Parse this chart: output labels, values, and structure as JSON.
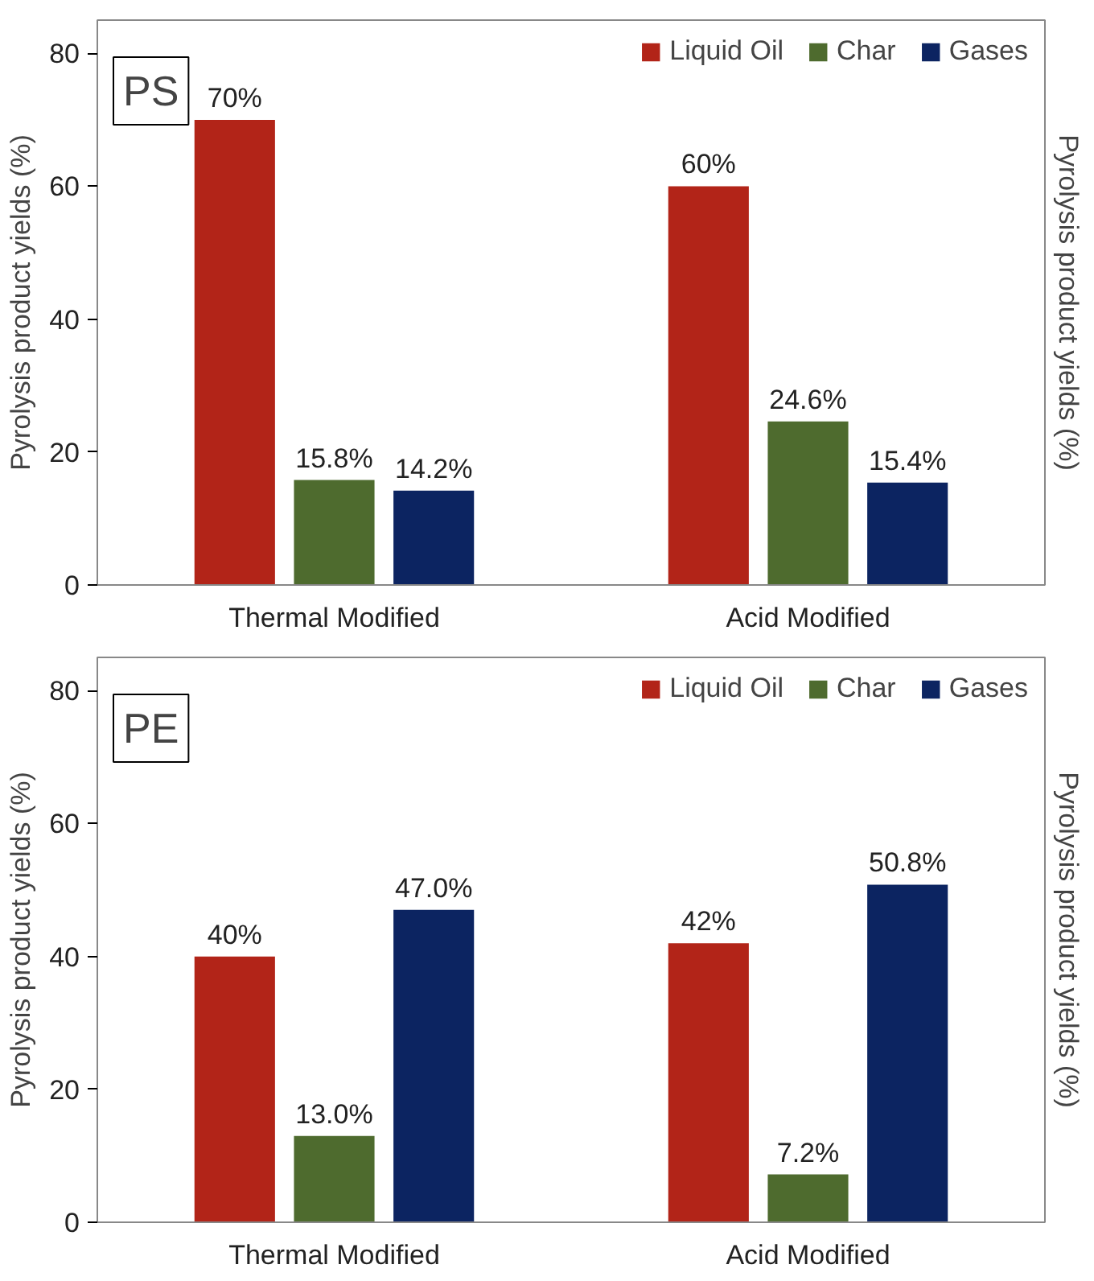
{
  "chart_data": [
    {
      "type": "bar",
      "title": "PS",
      "ylabel": "Pyrolysis product yields (%)",
      "categories": [
        "Thermal Modified",
        "Acid Modified"
      ],
      "ylim": [
        0,
        85
      ],
      "yticks": [
        0,
        20,
        40,
        60,
        80
      ],
      "legend": "top right",
      "grid": false,
      "annotations": [
        "Pyrolysis product yields (%)"
      ],
      "series": [
        {
          "name": "Liquid Oil",
          "color": "#b22418",
          "values": [
            70,
            60
          ],
          "value_labels": [
            "70%",
            "60%"
          ]
        },
        {
          "name": "Char",
          "color": "#4e6b2e",
          "values": [
            15.8,
            24.6
          ],
          "value_labels": [
            "15.8%",
            "24.6%"
          ]
        },
        {
          "name": "Gases",
          "color": "#0c2461",
          "values": [
            14.2,
            15.4
          ],
          "value_labels": [
            "14.2%",
            "15.4%"
          ]
        }
      ]
    },
    {
      "type": "bar",
      "title": "PE",
      "ylabel": "Pyrolysis product yields (%)",
      "categories": [
        "Thermal Modified",
        "Acid Modified"
      ],
      "ylim": [
        0,
        85
      ],
      "yticks": [
        0,
        20,
        40,
        60,
        80
      ],
      "legend": "top right",
      "grid": false,
      "annotations": [
        "Pyrolysis product yields (%)"
      ],
      "series": [
        {
          "name": "Liquid Oil",
          "color": "#b22418",
          "values": [
            40,
            42
          ],
          "value_labels": [
            "40%",
            "42%"
          ]
        },
        {
          "name": "Char",
          "color": "#4e6b2e",
          "values": [
            13.0,
            7.2
          ],
          "value_labels": [
            "13.0%",
            "7.2%"
          ]
        },
        {
          "name": "Gases",
          "color": "#0c2461",
          "values": [
            47.0,
            50.8
          ],
          "value_labels": [
            "47.0%",
            "50.8%"
          ]
        }
      ]
    }
  ]
}
